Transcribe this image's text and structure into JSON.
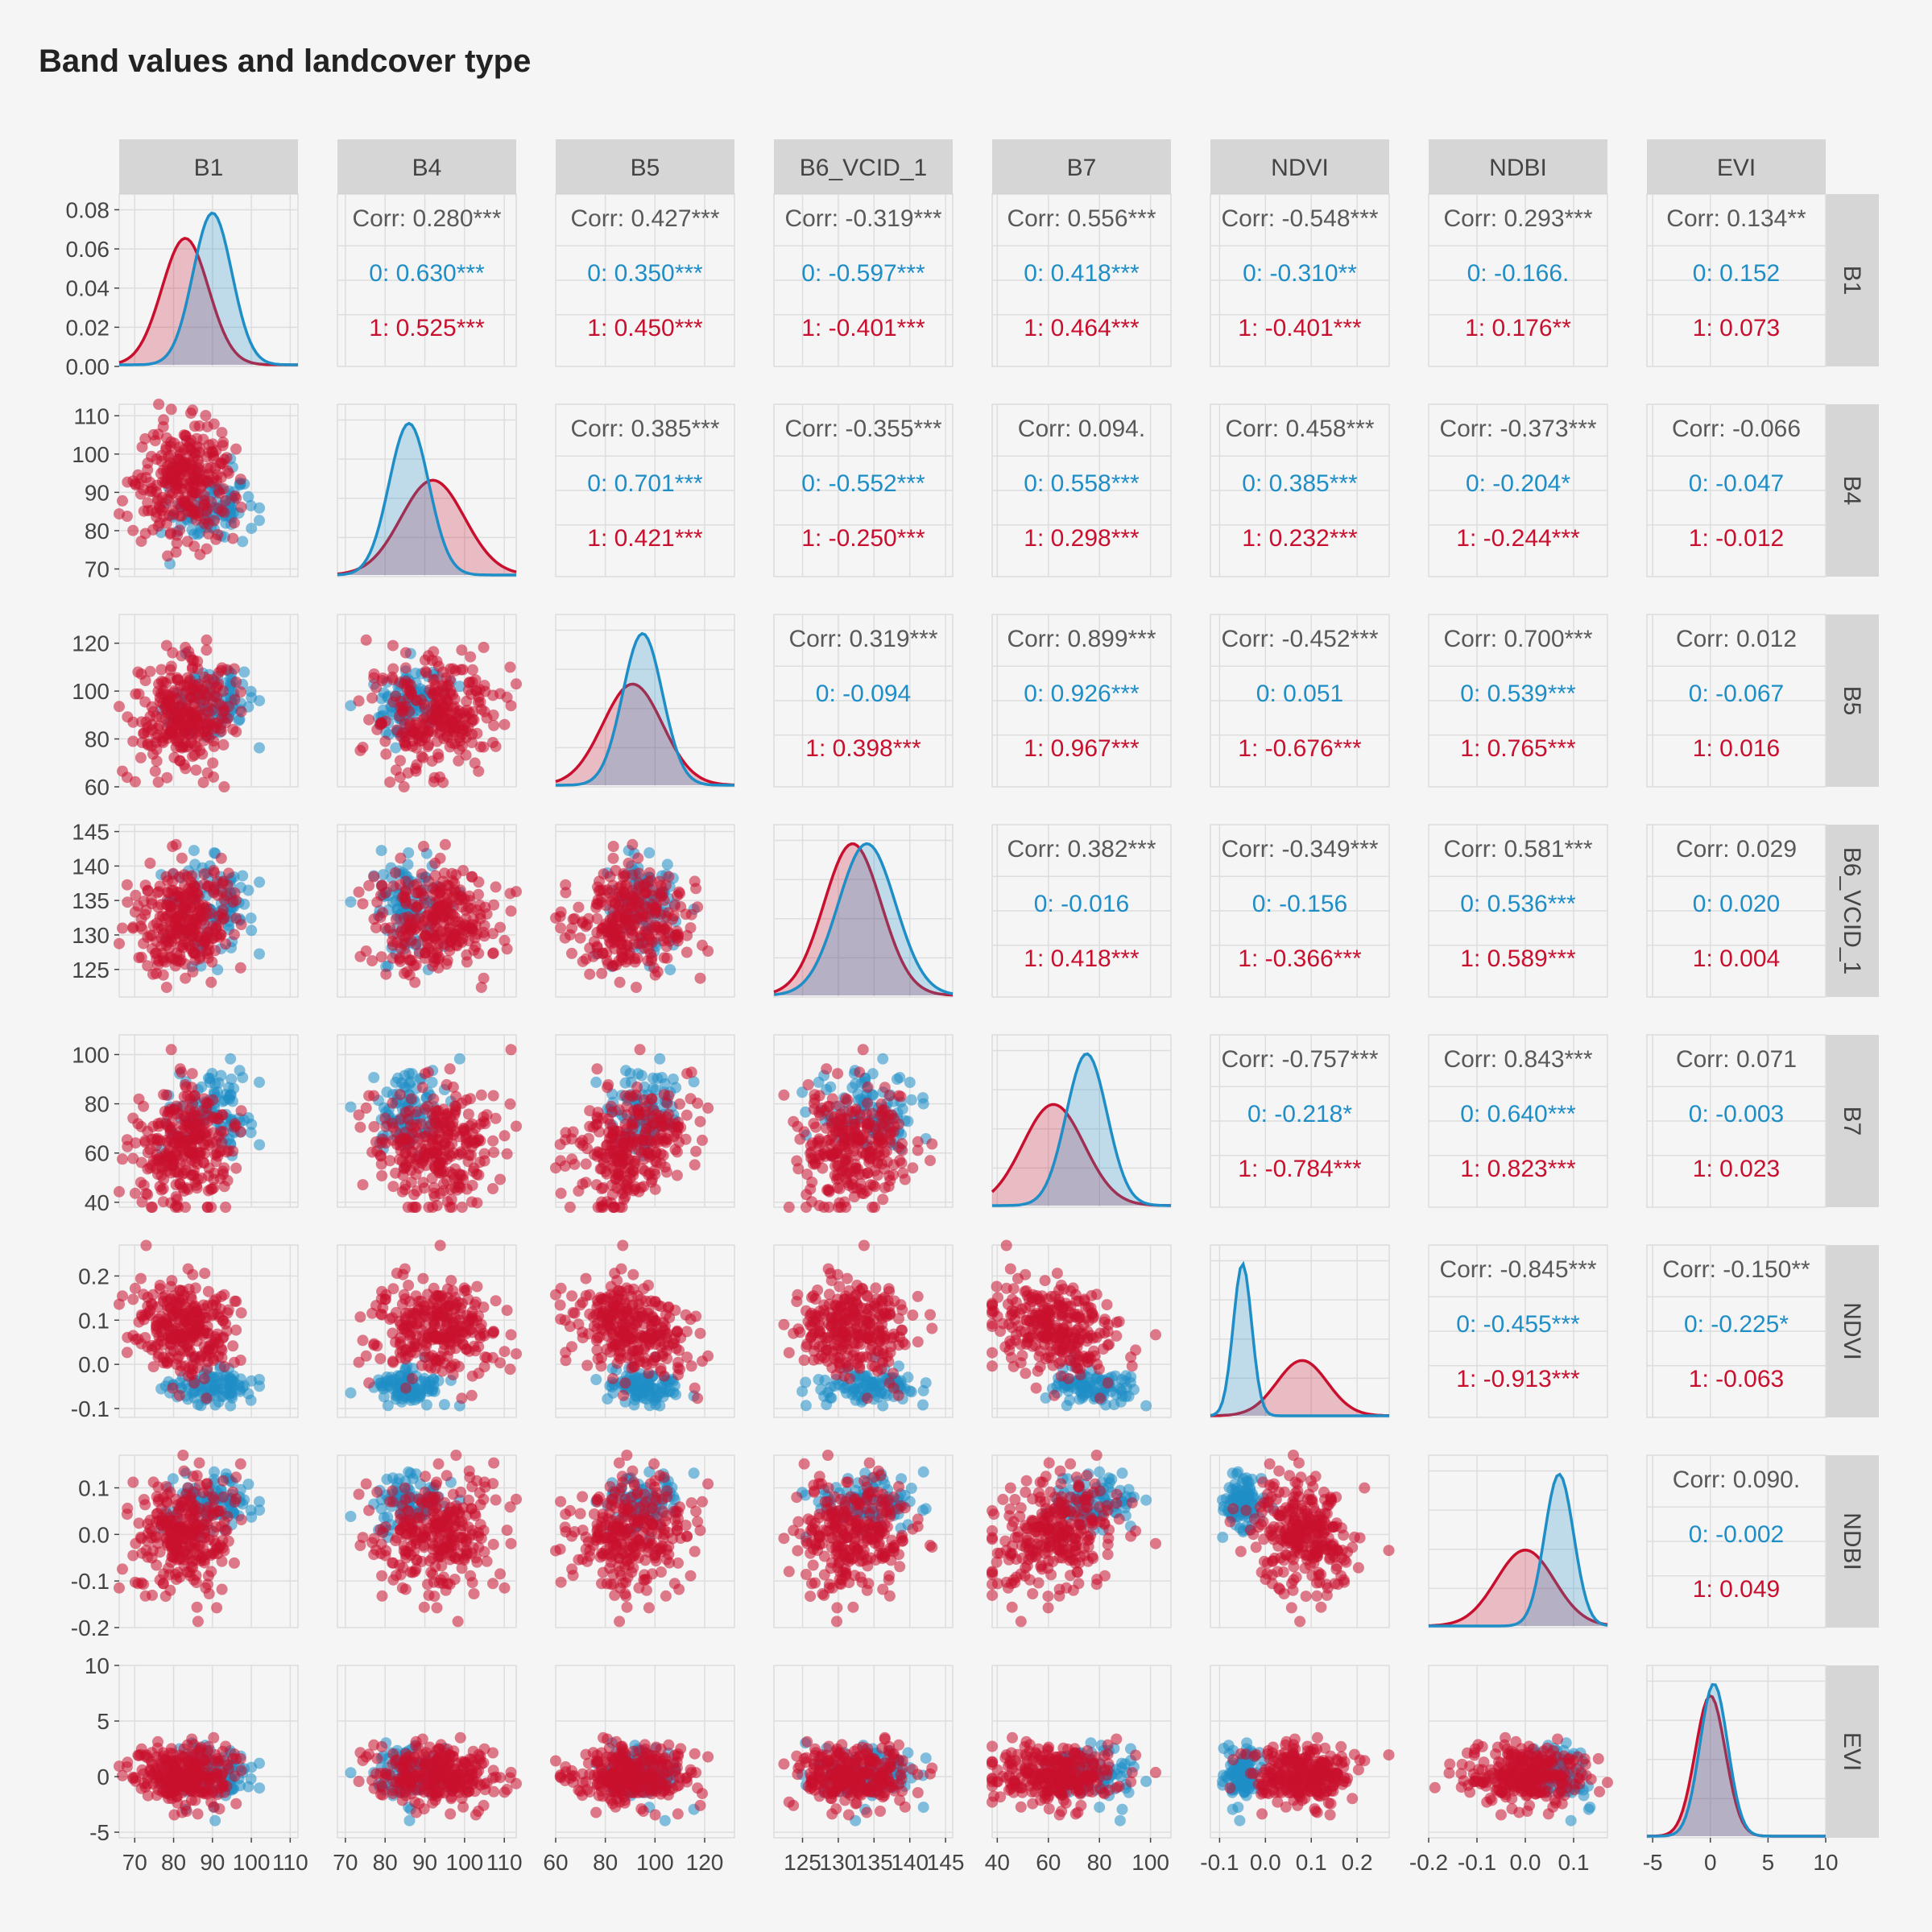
{
  "title": "Band values and landcover type",
  "colors": {
    "group0": "#1f8ec7",
    "group1": "#c8102e",
    "overall": "#595959",
    "strip": "#d6d6d6",
    "panel_bg": "#f5f5f5",
    "grid": "#dddddd"
  },
  "chart_data": {
    "type": "scatter",
    "variables": [
      "B1",
      "B4",
      "B5",
      "B6_VCID_1",
      "B7",
      "NDVI",
      "NDBI",
      "EVI"
    ],
    "groups": [
      "0",
      "1"
    ],
    "ranges": {
      "B1": [
        66,
        112
      ],
      "B4": [
        68,
        113
      ],
      "B5": [
        60,
        132
      ],
      "B6_VCID_1": [
        121,
        146
      ],
      "B7": [
        38,
        108
      ],
      "NDVI": [
        -0.12,
        0.27
      ],
      "NDBI": [
        -0.2,
        0.17
      ],
      "EVI": [
        -5.5,
        10
      ]
    },
    "ticks": {
      "B1": [
        "70",
        "80",
        "90",
        "100",
        "110"
      ],
      "B4": [
        "70",
        "80",
        "90",
        "100",
        "110"
      ],
      "B5": [
        "60",
        "80",
        "100",
        "120"
      ],
      "B6_VCID_1": [
        "125",
        "130",
        "135",
        "140",
        "145"
      ],
      "B7": [
        "40",
        "60",
        "80",
        "100"
      ],
      "NDVI": [
        "-0.1",
        "0.0",
        "0.1",
        "0.2"
      ],
      "NDBI": [
        "-0.2",
        "-0.1",
        "0.0",
        "0.1"
      ],
      "EVI": [
        "-5",
        "0",
        "5",
        "10"
      ]
    },
    "density_ticks": [
      "0.00",
      "0.02",
      "0.04",
      "0.06",
      "0.08"
    ],
    "density_ylim": [
      0,
      0.088
    ],
    "means": {
      "0": {
        "B1": 90,
        "B4": 86,
        "B5": 95,
        "B6_VCID_1": 134,
        "B7": 75,
        "NDVI": -0.05,
        "NDBI": 0.07,
        "EVI": 0.3
      },
      "1": {
        "B1": 83,
        "B4": 92,
        "B5": 91,
        "B6_VCID_1": 132,
        "B7": 62,
        "NDVI": 0.08,
        "NDBI": 0.0,
        "EVI": 0.0
      }
    },
    "sds": {
      "0": {
        "B1": 5,
        "B4": 5,
        "B5": 8,
        "B6_VCID_1": 4,
        "B7": 8,
        "NDVI": 0.02,
        "NDBI": 0.03,
        "EVI": 1.2
      },
      "1": {
        "B1": 6,
        "B4": 8,
        "B5": 12,
        "B6_VCID_1": 4,
        "B7": 12,
        "NDVI": 0.055,
        "NDBI": 0.06,
        "EVI": 1.3
      }
    },
    "n_points": {
      "0": 100,
      "1": 280
    },
    "correlations": {
      "B1": {
        "B4": [
          "Corr: 0.280***",
          "0: 0.630***",
          "1: 0.525***"
        ],
        "B5": [
          "Corr: 0.427***",
          "0: 0.350***",
          "1: 0.450***"
        ],
        "B6_VCID_1": [
          "Corr: -0.319***",
          "0: -0.597***",
          "1: -0.401***"
        ],
        "B7": [
          "Corr: 0.556***",
          "0: 0.418***",
          "1: 0.464***"
        ],
        "NDVI": [
          "Corr: -0.548***",
          "0: -0.310**",
          "1: -0.401***"
        ],
        "NDBI": [
          "Corr: 0.293***",
          "0: -0.166.",
          "1: 0.176**"
        ],
        "EVI": [
          "Corr: 0.134**",
          "0: 0.152",
          "1: 0.073"
        ]
      },
      "B4": {
        "B5": [
          "Corr: 0.385***",
          "0: 0.701***",
          "1: 0.421***"
        ],
        "B6_VCID_1": [
          "Corr: -0.355***",
          "0: -0.552***",
          "1: -0.250***"
        ],
        "B7": [
          "Corr: 0.094.",
          "0: 0.558***",
          "1: 0.298***"
        ],
        "NDVI": [
          "Corr: 0.458***",
          "0: 0.385***",
          "1: 0.232***"
        ],
        "NDBI": [
          "Corr: -0.373***",
          "0: -0.204*",
          "1: -0.244***"
        ],
        "EVI": [
          "Corr: -0.066",
          "0: -0.047",
          "1: -0.012"
        ]
      },
      "B5": {
        "B6_VCID_1": [
          "Corr: 0.319***",
          "0: -0.094",
          "1: 0.398***"
        ],
        "B7": [
          "Corr: 0.899***",
          "0: 0.926***",
          "1: 0.967***"
        ],
        "NDVI": [
          "Corr: -0.452***",
          "0: 0.051",
          "1: -0.676***"
        ],
        "NDBI": [
          "Corr: 0.700***",
          "0: 0.539***",
          "1: 0.765***"
        ],
        "EVI": [
          "Corr: 0.012",
          "0: -0.067",
          "1: 0.016"
        ]
      },
      "B6_VCID_1": {
        "B7": [
          "Corr: 0.382***",
          "0: -0.016",
          "1: 0.418***"
        ],
        "NDVI": [
          "Corr: -0.349***",
          "0: -0.156",
          "1: -0.366***"
        ],
        "NDBI": [
          "Corr: 0.581***",
          "0: 0.536***",
          "1: 0.589***"
        ],
        "EVI": [
          "Corr: 0.029",
          "0: 0.020",
          "1: 0.004"
        ]
      },
      "B7": {
        "NDVI": [
          "Corr: -0.757***",
          "0: -0.218*",
          "1: -0.784***"
        ],
        "NDBI": [
          "Corr: 0.843***",
          "0: 0.640***",
          "1: 0.823***"
        ],
        "EVI": [
          "Corr: 0.071",
          "0: -0.003",
          "1: 0.023"
        ]
      },
      "NDVI": {
        "NDBI": [
          "Corr: -0.845***",
          "0: -0.455***",
          "1: -0.913***"
        ],
        "EVI": [
          "Corr: -0.150**",
          "0: -0.225*",
          "1: -0.063"
        ]
      },
      "NDBI": {
        "EVI": [
          "Corr: 0.090.",
          "0: -0.002",
          "1: 0.049"
        ]
      }
    }
  }
}
